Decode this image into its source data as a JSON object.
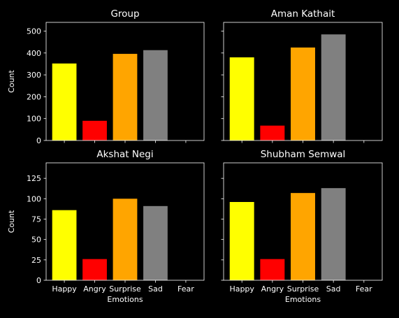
{
  "chart_data": [
    {
      "type": "bar",
      "title": "Group",
      "categories": [
        "Happy",
        "Angry",
        "Surprise",
        "Sad",
        "Fear"
      ],
      "values": [
        352,
        90,
        396,
        413,
        0
      ],
      "colors": [
        "#ffff00",
        "#ff0000",
        "#ffa500",
        "#808080",
        "#000000"
      ],
      "ylabel": "Count",
      "xlabel": "",
      "ylim": [
        0,
        540
      ],
      "yticks": [
        0,
        100,
        200,
        300,
        400,
        500
      ],
      "show_ytick_labels": true,
      "show_xtick_labels": false
    },
    {
      "type": "bar",
      "title": "Aman Kathait",
      "categories": [
        "Happy",
        "Angry",
        "Surprise",
        "Sad",
        "Fear"
      ],
      "values": [
        380,
        68,
        425,
        485,
        0
      ],
      "colors": [
        "#ffff00",
        "#ff0000",
        "#ffa500",
        "#808080",
        "#000000"
      ],
      "ylabel": "",
      "xlabel": "",
      "ylim": [
        0,
        540
      ],
      "yticks": [
        0,
        100,
        200,
        300,
        400,
        500
      ],
      "show_ytick_labels": false,
      "show_xtick_labels": false
    },
    {
      "type": "bar",
      "title": "Akshat Negi",
      "categories": [
        "Happy",
        "Angry",
        "Surprise",
        "Sad",
        "Fear"
      ],
      "values": [
        86,
        26,
        100,
        91,
        0
      ],
      "colors": [
        "#ffff00",
        "#ff0000",
        "#ffa500",
        "#808080",
        "#000000"
      ],
      "ylabel": "Count",
      "xlabel": "Emotions",
      "ylim": [
        0,
        144
      ],
      "yticks": [
        0,
        25,
        50,
        75,
        100,
        125
      ],
      "show_ytick_labels": true,
      "show_xtick_labels": true
    },
    {
      "type": "bar",
      "title": "Shubham Semwal",
      "categories": [
        "Happy",
        "Angry",
        "Surprise",
        "Sad",
        "Fear"
      ],
      "values": [
        96,
        26,
        107,
        113,
        0
      ],
      "colors": [
        "#ffff00",
        "#ff0000",
        "#ffa500",
        "#808080",
        "#000000"
      ],
      "ylabel": "",
      "xlabel": "Emotions",
      "ylim": [
        0,
        144
      ],
      "yticks": [
        0,
        25,
        50,
        75,
        100,
        125
      ],
      "show_ytick_labels": false,
      "show_xtick_labels": true
    }
  ]
}
